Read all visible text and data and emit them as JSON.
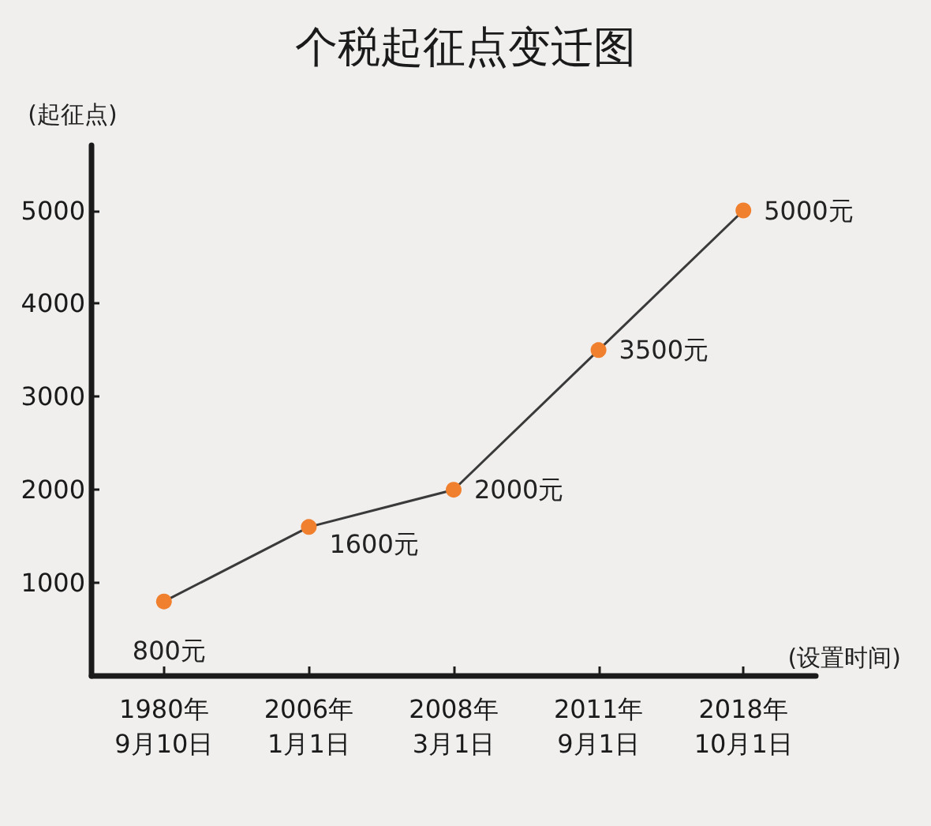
{
  "chart_data": {
    "type": "line",
    "title": "个税起征点变迁图",
    "ylabel": "(起征点)",
    "xlabel": "(设置时间)",
    "categories": [
      "1980年\n9月10日",
      "2006年\n1月1日",
      "2008年\n3月1日",
      "2011年\n9月1日",
      "2018年\n10月1日"
    ],
    "series": [
      {
        "color": "#f0802e",
        "values": [
          800,
          1600,
          2000,
          3500,
          5000
        ],
        "value_labels": [
          "800元",
          "1600元",
          "2000元",
          "3500元",
          "5000元"
        ]
      }
    ],
    "ylim": [
      0,
      5700
    ],
    "yticks": [
      1000,
      2000,
      3000,
      4000,
      5000
    ],
    "grid": false,
    "marker": "circle",
    "line_style": "solid"
  }
}
